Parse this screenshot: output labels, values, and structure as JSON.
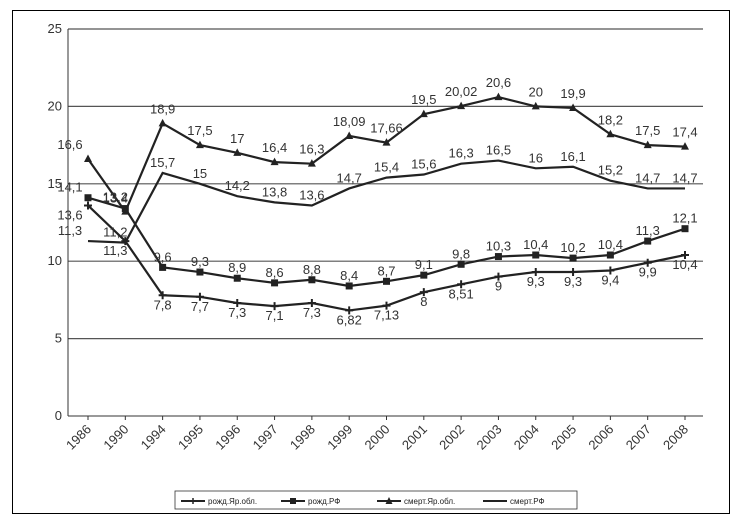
{
  "chart_data": {
    "type": "line",
    "title": "",
    "xlabel": "",
    "ylabel": "",
    "ylim": [
      0,
      25
    ],
    "yticks": [
      "0",
      "5",
      "10",
      "15",
      "20",
      "25"
    ],
    "categories": [
      "1986",
      "1990",
      "1994",
      "1995",
      "1996",
      "1997",
      "1998",
      "1999",
      "2000",
      "2001",
      "2002",
      "2003",
      "2004",
      "2005",
      "2006",
      "2007",
      "2008"
    ],
    "grid": true,
    "legend_position": "bottom",
    "series": [
      {
        "name": "рожд.Яр.обл.",
        "color": "#222222",
        "marker": "plus",
        "values": [
          13.6,
          11.3,
          7.8,
          7.7,
          7.3,
          7.1,
          7.3,
          6.82,
          7.13,
          8,
          8.51,
          9,
          9.3,
          9.3,
          9.4,
          9.9,
          10.4
        ],
        "labels": [
          "13,6",
          "11,3",
          "7,8",
          "7,7",
          "7,3",
          "7,1",
          "7,3",
          "6,82",
          "7,13",
          "8",
          "8,51",
          "9",
          "9,3",
          "9,3",
          "9,4",
          "9,9",
          "10,4"
        ]
      },
      {
        "name": "рожд.РФ",
        "color": "#222222",
        "marker": "square",
        "values": [
          14.1,
          13.4,
          9.6,
          9.3,
          8.9,
          8.6,
          8.8,
          8.4,
          8.7,
          9.1,
          9.8,
          10.3,
          10.4,
          10.2,
          10.4,
          11.3,
          12.1
        ],
        "labels": [
          "14,1",
          "13,4",
          "9,6",
          "9,3",
          "8,9",
          "8,6",
          "8,8",
          "8,4",
          "8,7",
          "9,1",
          "9,8",
          "10,3",
          "10,4",
          "10,2",
          "10,4",
          "11,3",
          "12,1"
        ]
      },
      {
        "name": "смерт.Яр.обл.",
        "color": "#222222",
        "marker": "triangle",
        "values": [
          16.6,
          13.2,
          18.9,
          17.5,
          17,
          16.4,
          16.3,
          18.09,
          17.66,
          19.5,
          20.02,
          20.6,
          20,
          19.9,
          18.2,
          17.5,
          17.4
        ],
        "labels": [
          "16,6",
          "13,2",
          "18,9",
          "17,5",
          "17",
          "16,4",
          "16,3",
          "18,09",
          "17,66",
          "19,5",
          "20,02",
          "20,6",
          "20",
          "19,9",
          "18,2",
          "17,5",
          "17,4"
        ]
      },
      {
        "name": "смерт.РФ",
        "color": "#222222",
        "marker": "none",
        "values": [
          11.3,
          11.2,
          15.7,
          15,
          14.2,
          13.8,
          13.6,
          14.7,
          15.4,
          15.6,
          16.3,
          16.5,
          16,
          16.1,
          15.2,
          14.7,
          14.7
        ],
        "labels": [
          "11,3",
          "11,2",
          "15,7",
          "15",
          "14,2",
          "13,8",
          "13,6",
          "14,7",
          "15,4",
          "15,6",
          "16,3",
          "16,5",
          "16",
          "16,1",
          "15,2",
          "14,7",
          "14,7"
        ]
      }
    ]
  }
}
